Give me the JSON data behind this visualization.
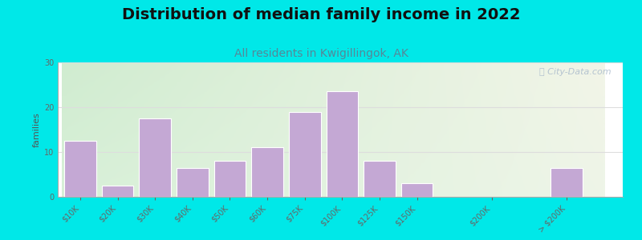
{
  "title": "Distribution of median family income in 2022",
  "subtitle": "All residents in Kwigillingok, AK",
  "ylabel": "families",
  "categories": [
    "$10K",
    "$20K",
    "$30K",
    "$40K",
    "$50K",
    "$60K",
    "$75K",
    "$100K",
    "$125K",
    "$150K",
    "$200K",
    "> $200K"
  ],
  "values": [
    12.5,
    2.5,
    17.5,
    6.5,
    8,
    11,
    19,
    23.5,
    8,
    3,
    0,
    6.5
  ],
  "bar_color": "#c4a8d4",
  "bar_edgecolor": "#ffffff",
  "background_outer": "#00e8e8",
  "plot_bg_color_topleft": "#d8eed8",
  "plot_bg_color_topright": "#f5f5ee",
  "plot_bg_color_bottom": "#f0faf0",
  "ylim": [
    0,
    30
  ],
  "yticks": [
    0,
    10,
    20,
    30
  ],
  "title_fontsize": 14,
  "subtitle_fontsize": 10,
  "subtitle_color": "#558899",
  "title_color": "#111111",
  "ylabel_fontsize": 8,
  "ylabel_color": "#555555",
  "tick_color": "#666666",
  "tick_fontsize": 7,
  "watermark": "City-Data.com",
  "watermark_color": "#aabbcc",
  "grid_color": "#dddddd",
  "x_positions": [
    0,
    1,
    2,
    3,
    4,
    5,
    6,
    7,
    8,
    9,
    11,
    13
  ],
  "bar_width": 0.85
}
